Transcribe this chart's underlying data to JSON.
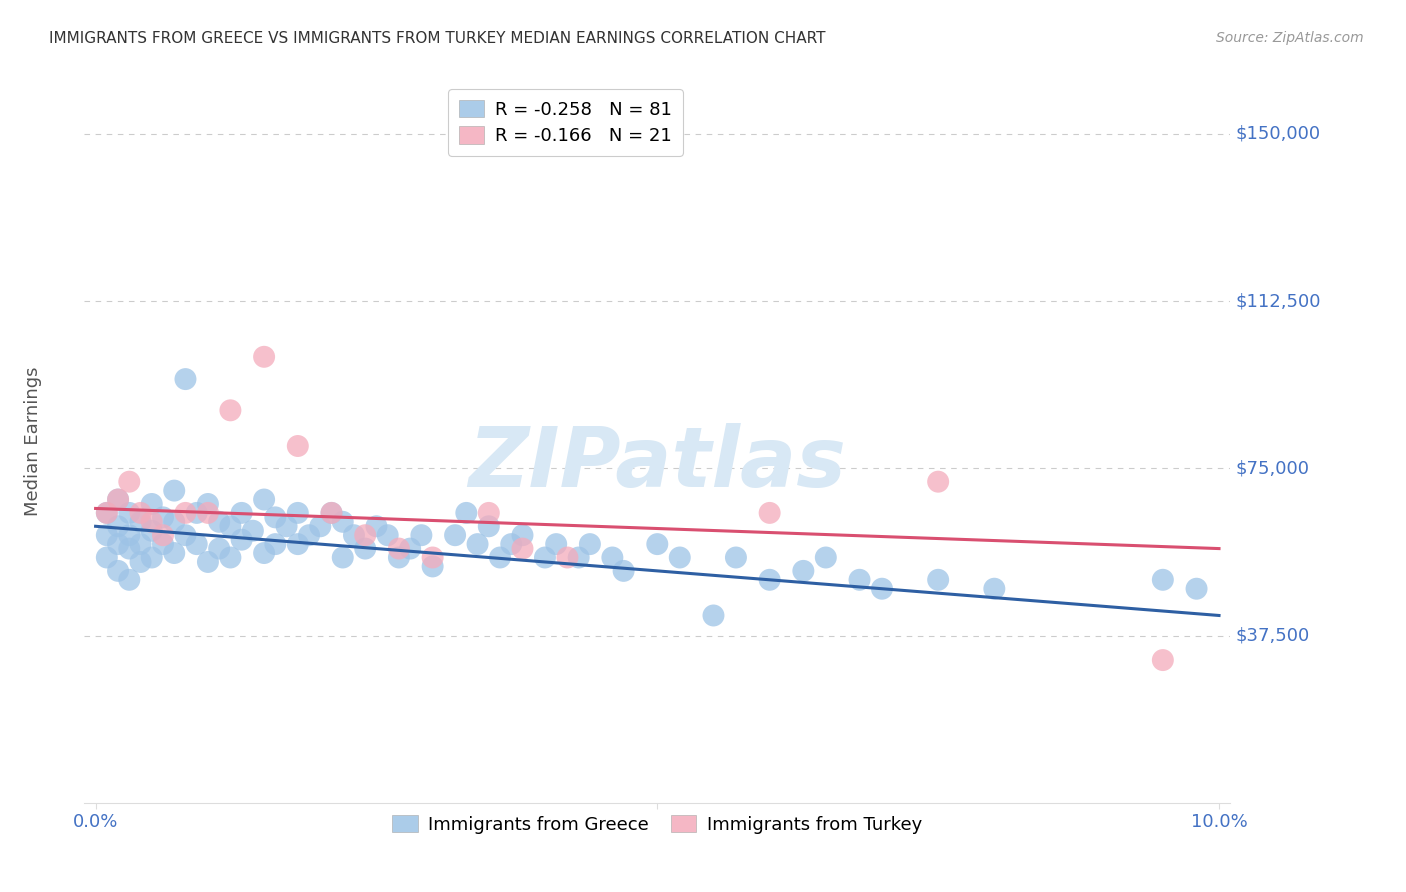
{
  "title": "IMMIGRANTS FROM GREECE VS IMMIGRANTS FROM TURKEY MEDIAN EARNINGS CORRELATION CHART",
  "source": "Source: ZipAtlas.com",
  "ylabel": "Median Earnings",
  "ylim": [
    0,
    162000
  ],
  "xlim": [
    -0.001,
    0.101
  ],
  "ytick_vals": [
    37500,
    75000,
    112500,
    150000
  ],
  "ytick_labels": [
    "$37,500",
    "$75,000",
    "$112,500",
    "$150,000"
  ],
  "watermark_text": "ZIPatlas",
  "greece_color": "#9DC3E6",
  "turkey_color": "#F4ABBB",
  "trendline_greece_color": "#2E5FA3",
  "trendline_turkey_color": "#D94F70",
  "background_color": "#ffffff",
  "grid_color": "#CCCCCC",
  "title_color": "#333333",
  "ytick_color": "#4472C4",
  "xtick_color": "#4472C4",
  "ylabel_color": "#555555",
  "greece_trend_y0": 62000,
  "greece_trend_y1": 42000,
  "turkey_trend_y0": 66000,
  "turkey_trend_y1": 57000,
  "legend_top_labels": [
    "R = -0.258   N = 81",
    "R = -0.166   N = 21"
  ],
  "legend_bottom_labels": [
    "Immigrants from Greece",
    "Immigrants from Turkey"
  ],
  "greece_x": [
    0.001,
    0.001,
    0.001,
    0.002,
    0.002,
    0.002,
    0.002,
    0.003,
    0.003,
    0.003,
    0.003,
    0.004,
    0.004,
    0.004,
    0.005,
    0.005,
    0.005,
    0.006,
    0.006,
    0.007,
    0.007,
    0.007,
    0.008,
    0.008,
    0.009,
    0.009,
    0.01,
    0.01,
    0.011,
    0.011,
    0.012,
    0.012,
    0.013,
    0.013,
    0.014,
    0.015,
    0.015,
    0.016,
    0.016,
    0.017,
    0.018,
    0.018,
    0.019,
    0.02,
    0.021,
    0.022,
    0.022,
    0.023,
    0.024,
    0.025,
    0.026,
    0.027,
    0.028,
    0.029,
    0.03,
    0.032,
    0.033,
    0.034,
    0.035,
    0.036,
    0.037,
    0.038,
    0.04,
    0.041,
    0.043,
    0.044,
    0.046,
    0.047,
    0.05,
    0.052,
    0.055,
    0.057,
    0.06,
    0.063,
    0.065,
    0.068,
    0.07,
    0.075,
    0.08,
    0.095,
    0.098
  ],
  "greece_y": [
    60000,
    65000,
    55000,
    68000,
    62000,
    58000,
    52000,
    65000,
    60000,
    57000,
    50000,
    63000,
    58000,
    54000,
    67000,
    61000,
    55000,
    64000,
    58000,
    70000,
    63000,
    56000,
    95000,
    60000,
    65000,
    58000,
    67000,
    54000,
    63000,
    57000,
    62000,
    55000,
    65000,
    59000,
    61000,
    68000,
    56000,
    64000,
    58000,
    62000,
    65000,
    58000,
    60000,
    62000,
    65000,
    63000,
    55000,
    60000,
    57000,
    62000,
    60000,
    55000,
    57000,
    60000,
    53000,
    60000,
    65000,
    58000,
    62000,
    55000,
    58000,
    60000,
    55000,
    58000,
    55000,
    58000,
    55000,
    52000,
    58000,
    55000,
    42000,
    55000,
    50000,
    52000,
    55000,
    50000,
    48000,
    50000,
    48000,
    50000,
    48000
  ],
  "turkey_x": [
    0.001,
    0.002,
    0.003,
    0.004,
    0.005,
    0.006,
    0.008,
    0.01,
    0.012,
    0.015,
    0.018,
    0.021,
    0.024,
    0.027,
    0.03,
    0.035,
    0.038,
    0.042,
    0.06,
    0.075,
    0.095
  ],
  "turkey_y": [
    65000,
    68000,
    72000,
    65000,
    63000,
    60000,
    65000,
    65000,
    88000,
    100000,
    80000,
    65000,
    60000,
    57000,
    55000,
    65000,
    57000,
    55000,
    65000,
    72000,
    32000
  ]
}
